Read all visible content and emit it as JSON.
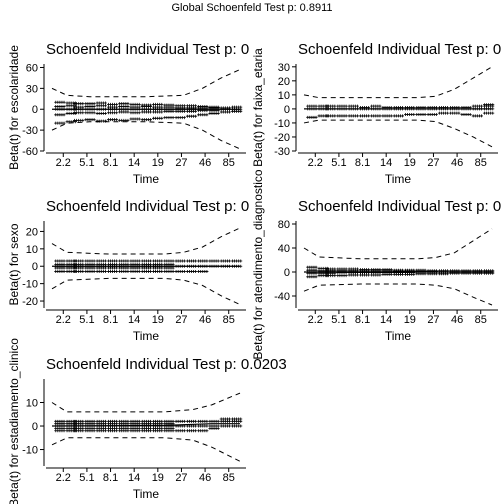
{
  "global_title": "Global Schoenfeld Test p: 0.8911",
  "x_tick_labels": [
    "2.2",
    "5.1",
    "8.1",
    "14",
    "19",
    "27",
    "46",
    "85"
  ],
  "chart_data": [
    {
      "type": "scatter",
      "title": "Schoenfeld Individual Test p: 0",
      "xlabel": "Time",
      "ylabel": "Beta(t) for escolaridade",
      "yticks": [
        -60,
        -30,
        0,
        30,
        60
      ],
      "ylim": [
        -60,
        65
      ],
      "x": [
        "2.2",
        "5.1",
        "8.1",
        "14",
        "19",
        "27",
        "46",
        "85"
      ],
      "points": [
        {
          "t": 0.02,
          "r": [
            -20,
            -8,
            0,
            4,
            10
          ]
        },
        {
          "t": 0.08,
          "r": [
            -18,
            -6,
            0,
            5,
            9
          ]
        },
        {
          "t": 0.12,
          "r": [
            -16,
            -5,
            0,
            3,
            8
          ]
        },
        {
          "t": 0.18,
          "r": [
            -15,
            -5,
            0,
            4,
            8
          ]
        },
        {
          "t": 0.24,
          "r": [
            -17,
            -6,
            0,
            5,
            9
          ]
        },
        {
          "t": 0.3,
          "r": [
            -15,
            -5,
            0,
            3,
            7
          ]
        },
        {
          "t": 0.36,
          "r": [
            -16,
            -4,
            0,
            4,
            8
          ]
        },
        {
          "t": 0.42,
          "r": [
            -14,
            -5,
            0,
            3,
            7
          ]
        },
        {
          "t": 0.48,
          "r": [
            -15,
            -4,
            0,
            4,
            6
          ]
        },
        {
          "t": 0.54,
          "r": [
            -13,
            -4,
            0,
            3,
            7
          ]
        },
        {
          "t": 0.6,
          "r": [
            -12,
            -3,
            0,
            3,
            6
          ]
        },
        {
          "t": 0.66,
          "r": [
            -12,
            -3,
            0,
            2,
            5
          ]
        },
        {
          "t": 0.72,
          "r": [
            -10,
            -3,
            0,
            2,
            5
          ]
        },
        {
          "t": 0.78,
          "r": [
            -8,
            -2,
            0,
            2,
            4
          ]
        },
        {
          "t": 0.84,
          "r": [
            -6,
            -2,
            0,
            2,
            3
          ]
        },
        {
          "t": 0.9,
          "r": [
            -4,
            0,
            2
          ]
        },
        {
          "t": 0.96,
          "r": [
            -3,
            0,
            3
          ]
        }
      ],
      "fit": [
        [
          0,
          0
        ],
        [
          1,
          0
        ]
      ],
      "upper": [
        [
          0,
          30
        ],
        [
          0.08,
          20
        ],
        [
          0.2,
          18
        ],
        [
          0.5,
          18
        ],
        [
          0.7,
          20
        ],
        [
          0.8,
          30
        ],
        [
          0.9,
          45
        ],
        [
          1,
          57
        ]
      ],
      "lower": [
        [
          0,
          -30
        ],
        [
          0.08,
          -20
        ],
        [
          0.2,
          -18
        ],
        [
          0.5,
          -18
        ],
        [
          0.7,
          -20
        ],
        [
          0.8,
          -30
        ],
        [
          0.9,
          -45
        ],
        [
          1,
          -57
        ]
      ]
    },
    {
      "type": "scatter",
      "title": "Schoenfeld Individual Test p: 0",
      "xlabel": "Time",
      "ylabel": "Beta(t) for faixa_etaria",
      "yticks": [
        -30,
        -20,
        -10,
        0,
        10,
        20,
        30
      ],
      "ylim": [
        -30,
        32
      ],
      "x": [
        "2.2",
        "5.1",
        "8.1",
        "14",
        "19",
        "27",
        "46",
        "85"
      ],
      "points": [
        {
          "t": 0.02,
          "r": [
            -6,
            0,
            2
          ]
        },
        {
          "t": 0.08,
          "r": [
            -5,
            0,
            2
          ]
        },
        {
          "t": 0.12,
          "r": [
            -5,
            0,
            2
          ]
        },
        {
          "t": 0.18,
          "r": [
            -5,
            0,
            2
          ]
        },
        {
          "t": 0.24,
          "r": [
            -5,
            0,
            2
          ]
        },
        {
          "t": 0.3,
          "r": [
            -5,
            0,
            1
          ]
        },
        {
          "t": 0.36,
          "r": [
            -5,
            0,
            2
          ]
        },
        {
          "t": 0.42,
          "r": [
            -5,
            0,
            1
          ]
        },
        {
          "t": 0.48,
          "r": [
            -5,
            0,
            1
          ]
        },
        {
          "t": 0.54,
          "r": [
            -4,
            0,
            1
          ]
        },
        {
          "t": 0.6,
          "r": [
            -4,
            0,
            1
          ]
        },
        {
          "t": 0.66,
          "r": [
            -4,
            0,
            1
          ]
        },
        {
          "t": 0.72,
          "r": [
            -3,
            0,
            1
          ]
        },
        {
          "t": 0.78,
          "r": [
            -3,
            0,
            1
          ]
        },
        {
          "t": 0.84,
          "r": [
            -4,
            0,
            1
          ]
        },
        {
          "t": 0.9,
          "r": [
            -5,
            0,
            2
          ]
        },
        {
          "t": 0.96,
          "r": [
            -3,
            0,
            2,
            3
          ]
        }
      ],
      "fit": [
        [
          0,
          0
        ],
        [
          1,
          0
        ]
      ],
      "upper": [
        [
          0,
          10
        ],
        [
          0.08,
          8
        ],
        [
          0.3,
          8
        ],
        [
          0.6,
          8
        ],
        [
          0.7,
          9
        ],
        [
          0.8,
          14
        ],
        [
          0.9,
          22
        ],
        [
          1,
          30
        ]
      ],
      "lower": [
        [
          0,
          -10
        ],
        [
          0.08,
          -8
        ],
        [
          0.3,
          -8
        ],
        [
          0.6,
          -8
        ],
        [
          0.7,
          -9
        ],
        [
          0.8,
          -14
        ],
        [
          0.9,
          -20
        ],
        [
          1,
          -27
        ]
      ]
    },
    {
      "type": "scatter",
      "title": "Schoenfeld Individual Test p: 0",
      "xlabel": "Time",
      "ylabel": "Beta(t) for sexo",
      "yticks": [
        -20,
        -10,
        0,
        10,
        20
      ],
      "ylim": [
        -24,
        26
      ],
      "x": [
        "2.2",
        "5.1",
        "8.1",
        "14",
        "19",
        "27",
        "46",
        "85"
      ],
      "points": [
        {
          "t": 0.02,
          "r": [
            -3,
            -1,
            0,
            1,
            3
          ]
        },
        {
          "t": 0.08,
          "r": [
            -3,
            -1,
            0,
            1,
            3
          ]
        },
        {
          "t": 0.12,
          "r": [
            -3,
            -1,
            0,
            1,
            3
          ]
        },
        {
          "t": 0.18,
          "r": [
            -3,
            -1,
            0,
            1,
            3
          ]
        },
        {
          "t": 0.24,
          "r": [
            -3,
            -1,
            0,
            1,
            3
          ]
        },
        {
          "t": 0.3,
          "r": [
            -3,
            -1,
            0,
            1,
            3
          ]
        },
        {
          "t": 0.36,
          "r": [
            -3,
            -1,
            0,
            1,
            3
          ]
        },
        {
          "t": 0.42,
          "r": [
            -3,
            -1,
            0,
            1,
            3
          ]
        },
        {
          "t": 0.48,
          "r": [
            -3,
            -1,
            0,
            1,
            3
          ]
        },
        {
          "t": 0.54,
          "r": [
            -3,
            -1,
            0,
            1,
            3
          ]
        },
        {
          "t": 0.6,
          "r": [
            -3,
            -1,
            0,
            1,
            3
          ]
        },
        {
          "t": 0.66,
          "r": [
            -3,
            0,
            3
          ]
        },
        {
          "t": 0.72,
          "r": [
            -3,
            0,
            3
          ]
        },
        {
          "t": 0.78,
          "r": [
            -3,
            0,
            3
          ]
        },
        {
          "t": 0.84,
          "r": [
            0,
            3
          ]
        },
        {
          "t": 0.9,
          "r": [
            0,
            3
          ]
        },
        {
          "t": 0.96,
          "r": [
            0,
            3
          ]
        }
      ],
      "fit": [
        [
          0,
          0
        ],
        [
          1,
          0
        ]
      ],
      "upper": [
        [
          0,
          13
        ],
        [
          0.08,
          8
        ],
        [
          0.3,
          7
        ],
        [
          0.6,
          7
        ],
        [
          0.7,
          8
        ],
        [
          0.8,
          11
        ],
        [
          0.9,
          17
        ],
        [
          1,
          22
        ]
      ],
      "lower": [
        [
          0,
          -13
        ],
        [
          0.08,
          -8
        ],
        [
          0.3,
          -7
        ],
        [
          0.6,
          -7
        ],
        [
          0.7,
          -8
        ],
        [
          0.8,
          -11
        ],
        [
          0.9,
          -17
        ],
        [
          1,
          -22
        ]
      ]
    },
    {
      "type": "scatter",
      "title": "Schoenfeld Individual Test p: 0",
      "xlabel": "Time",
      "ylabel": "Beta(t) for atendimento_diagnostico",
      "yticks": [
        -40,
        0,
        40,
        80
      ],
      "ylim": [
        -60,
        85
      ],
      "x": [
        "2.2",
        "5.1",
        "8.1",
        "14",
        "19",
        "27",
        "46",
        "85"
      ],
      "points": [
        {
          "t": 0.02,
          "r": [
            -8,
            -2,
            0,
            3,
            8
          ]
        },
        {
          "t": 0.08,
          "r": [
            -6,
            -2,
            0,
            2,
            6
          ]
        },
        {
          "t": 0.12,
          "r": [
            -6,
            -2,
            0,
            2,
            5
          ]
        },
        {
          "t": 0.18,
          "r": [
            -6,
            -1,
            0,
            2,
            5
          ]
        },
        {
          "t": 0.24,
          "r": [
            -5,
            -1,
            0,
            2,
            5
          ]
        },
        {
          "t": 0.3,
          "r": [
            -5,
            -1,
            0,
            2,
            4
          ]
        },
        {
          "t": 0.36,
          "r": [
            -5,
            -1,
            0,
            2,
            4
          ]
        },
        {
          "t": 0.42,
          "r": [
            -4,
            -1,
            0,
            2,
            4
          ]
        },
        {
          "t": 0.48,
          "r": [
            -4,
            -1,
            0,
            1,
            3
          ]
        },
        {
          "t": 0.54,
          "r": [
            -4,
            -1,
            0,
            1,
            3
          ]
        },
        {
          "t": 0.6,
          "r": [
            -3,
            0,
            1,
            3
          ]
        },
        {
          "t": 0.66,
          "r": [
            -3,
            0,
            1,
            2
          ]
        },
        {
          "t": 0.72,
          "r": [
            -3,
            0,
            2
          ]
        },
        {
          "t": 0.78,
          "r": [
            -2,
            0,
            2
          ]
        },
        {
          "t": 0.84,
          "r": [
            -2,
            0,
            2
          ]
        },
        {
          "t": 0.9,
          "r": [
            -2,
            0,
            2
          ]
        },
        {
          "t": 0.96,
          "r": [
            -2,
            0,
            2
          ]
        }
      ],
      "fit": [
        [
          0,
          0
        ],
        [
          1,
          0
        ]
      ],
      "upper": [
        [
          0,
          40
        ],
        [
          0.08,
          25
        ],
        [
          0.3,
          22
        ],
        [
          0.6,
          22
        ],
        [
          0.7,
          24
        ],
        [
          0.8,
          32
        ],
        [
          0.9,
          52
        ],
        [
          1,
          72
        ]
      ],
      "lower": [
        [
          0,
          -32
        ],
        [
          0.08,
          -22
        ],
        [
          0.3,
          -20
        ],
        [
          0.6,
          -20
        ],
        [
          0.7,
          -22
        ],
        [
          0.8,
          -28
        ],
        [
          0.9,
          -42
        ],
        [
          1,
          -55
        ]
      ]
    },
    {
      "type": "scatter",
      "title": "Schoenfeld Individual Test p: 0.0203",
      "xlabel": "Time",
      "ylabel": "Beta(t) for estadiamento_clinico",
      "yticks": [
        -10,
        0,
        10
      ],
      "ylim": [
        -17,
        20
      ],
      "x": [
        "2.2",
        "5.1",
        "8.1",
        "14",
        "19",
        "27",
        "46",
        "85"
      ],
      "points": [
        {
          "t": 0.02,
          "r": [
            -2,
            -1,
            0,
            1,
            2
          ]
        },
        {
          "t": 0.08,
          "r": [
            -2,
            -1,
            0,
            1,
            2
          ]
        },
        {
          "t": 0.12,
          "r": [
            -2,
            -1,
            0,
            1,
            2
          ]
        },
        {
          "t": 0.18,
          "r": [
            -2,
            -1,
            0,
            1,
            2
          ]
        },
        {
          "t": 0.24,
          "r": [
            -2,
            -1,
            0,
            1,
            2
          ]
        },
        {
          "t": 0.3,
          "r": [
            -2,
            -1,
            0,
            1,
            2
          ]
        },
        {
          "t": 0.36,
          "r": [
            -2,
            -1,
            0,
            1,
            2
          ]
        },
        {
          "t": 0.42,
          "r": [
            -2,
            -1,
            0,
            1,
            2
          ]
        },
        {
          "t": 0.48,
          "r": [
            -2,
            -1,
            0,
            1,
            2
          ]
        },
        {
          "t": 0.54,
          "r": [
            -2,
            -1,
            0,
            1,
            2
          ]
        },
        {
          "t": 0.6,
          "r": [
            -2,
            -1,
            0,
            1,
            2
          ]
        },
        {
          "t": 0.66,
          "r": [
            -2,
            0,
            2
          ]
        },
        {
          "t": 0.72,
          "r": [
            -2,
            0,
            2
          ]
        },
        {
          "t": 0.78,
          "r": [
            -2,
            0,
            2
          ]
        },
        {
          "t": 0.84,
          "r": [
            -1,
            0,
            2
          ]
        },
        {
          "t": 0.9,
          "r": [
            0,
            2,
            3
          ]
        },
        {
          "t": 0.96,
          "r": [
            0,
            2,
            3
          ]
        }
      ],
      "fit": [
        [
          0,
          0
        ],
        [
          0.6,
          0.3
        ],
        [
          0.85,
          1
        ],
        [
          1,
          1
        ]
      ],
      "upper": [
        [
          0,
          10
        ],
        [
          0.08,
          6
        ],
        [
          0.3,
          6
        ],
        [
          0.6,
          6
        ],
        [
          0.75,
          7
        ],
        [
          0.85,
          9
        ],
        [
          1,
          14
        ]
      ],
      "lower": [
        [
          0,
          -8
        ],
        [
          0.08,
          -5
        ],
        [
          0.3,
          -5
        ],
        [
          0.6,
          -5
        ],
        [
          0.75,
          -6
        ],
        [
          0.85,
          -9
        ],
        [
          1,
          -15
        ]
      ]
    }
  ]
}
